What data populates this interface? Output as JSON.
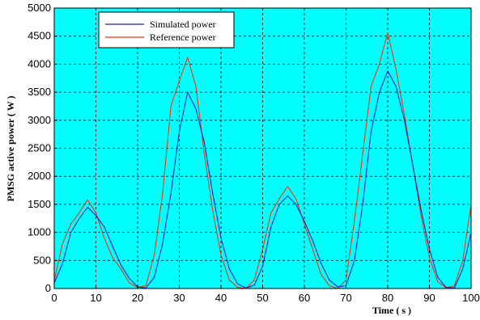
{
  "chart_data": {
    "type": "line",
    "xlabel": "Time ( s )",
    "ylabel": "PMSG active power ( W )",
    "xlim": [
      0,
      100
    ],
    "ylim": [
      0,
      5000
    ],
    "xticks": [
      0,
      10,
      20,
      30,
      40,
      50,
      60,
      70,
      80,
      90,
      100
    ],
    "yticks": [
      0,
      500,
      1000,
      1500,
      2000,
      2500,
      3000,
      3500,
      4000,
      4500,
      5000
    ],
    "grid": true,
    "grid_style": "dashed",
    "background": "#00ffff",
    "legend_position": "top-left",
    "series": [
      {
        "name": "Simulated power",
        "color": "#1f1fd0",
        "x": [
          0,
          2,
          4,
          6,
          8,
          10,
          12,
          14,
          16,
          18,
          20,
          22,
          24,
          26,
          28,
          30,
          32,
          34,
          36,
          38,
          40,
          42,
          44,
          46,
          48,
          50,
          52,
          54,
          56,
          58,
          60,
          62,
          64,
          66,
          68,
          70,
          72,
          74,
          76,
          78,
          80,
          82,
          84,
          86,
          88,
          90,
          92,
          94,
          96,
          98,
          100
        ],
        "y": [
          100,
          450,
          1000,
          1250,
          1450,
          1300,
          1100,
          750,
          420,
          180,
          30,
          10,
          200,
          800,
          1700,
          2800,
          3500,
          3200,
          2600,
          1700,
          900,
          350,
          80,
          10,
          60,
          400,
          1100,
          1500,
          1650,
          1500,
          1200,
          850,
          450,
          150,
          30,
          50,
          500,
          1500,
          2800,
          3500,
          3880,
          3600,
          3000,
          2200,
          1400,
          700,
          200,
          20,
          10,
          350,
          1000
        ]
      },
      {
        "name": "Reference power",
        "color": "#ff3000",
        "x": [
          0,
          2,
          4,
          6,
          8,
          10,
          12,
          14,
          16,
          18,
          20,
          22,
          24,
          26,
          28,
          30,
          32,
          34,
          36,
          38,
          40,
          42,
          44,
          46,
          48,
          50,
          52,
          54,
          56,
          58,
          60,
          62,
          64,
          66,
          68,
          70,
          72,
          74,
          76,
          78,
          80,
          82,
          84,
          86,
          88,
          90,
          92,
          94,
          96,
          98,
          100
        ],
        "y": [
          150,
          800,
          1150,
          1350,
          1580,
          1350,
          900,
          550,
          350,
          100,
          20,
          50,
          600,
          1700,
          3250,
          3700,
          4120,
          3600,
          2400,
          1400,
          600,
          150,
          20,
          0,
          150,
          700,
          1350,
          1600,
          1820,
          1600,
          1150,
          700,
          250,
          50,
          0,
          150,
          1200,
          2400,
          3600,
          4000,
          4560,
          3900,
          3100,
          2200,
          1300,
          550,
          120,
          10,
          50,
          500,
          1500
        ]
      }
    ]
  }
}
